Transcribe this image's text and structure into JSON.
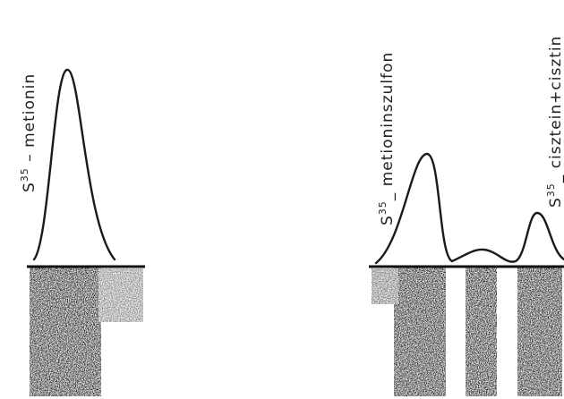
{
  "labels": [
    {
      "element": "S",
      "mass": "35",
      "name": " – metionin"
    },
    {
      "element": "S",
      "mass": "35",
      "name": "_ metioninszulfon"
    },
    {
      "element": "S",
      "mass": "35",
      "name": "_ cisztein+cisztin"
    }
  ]
}
